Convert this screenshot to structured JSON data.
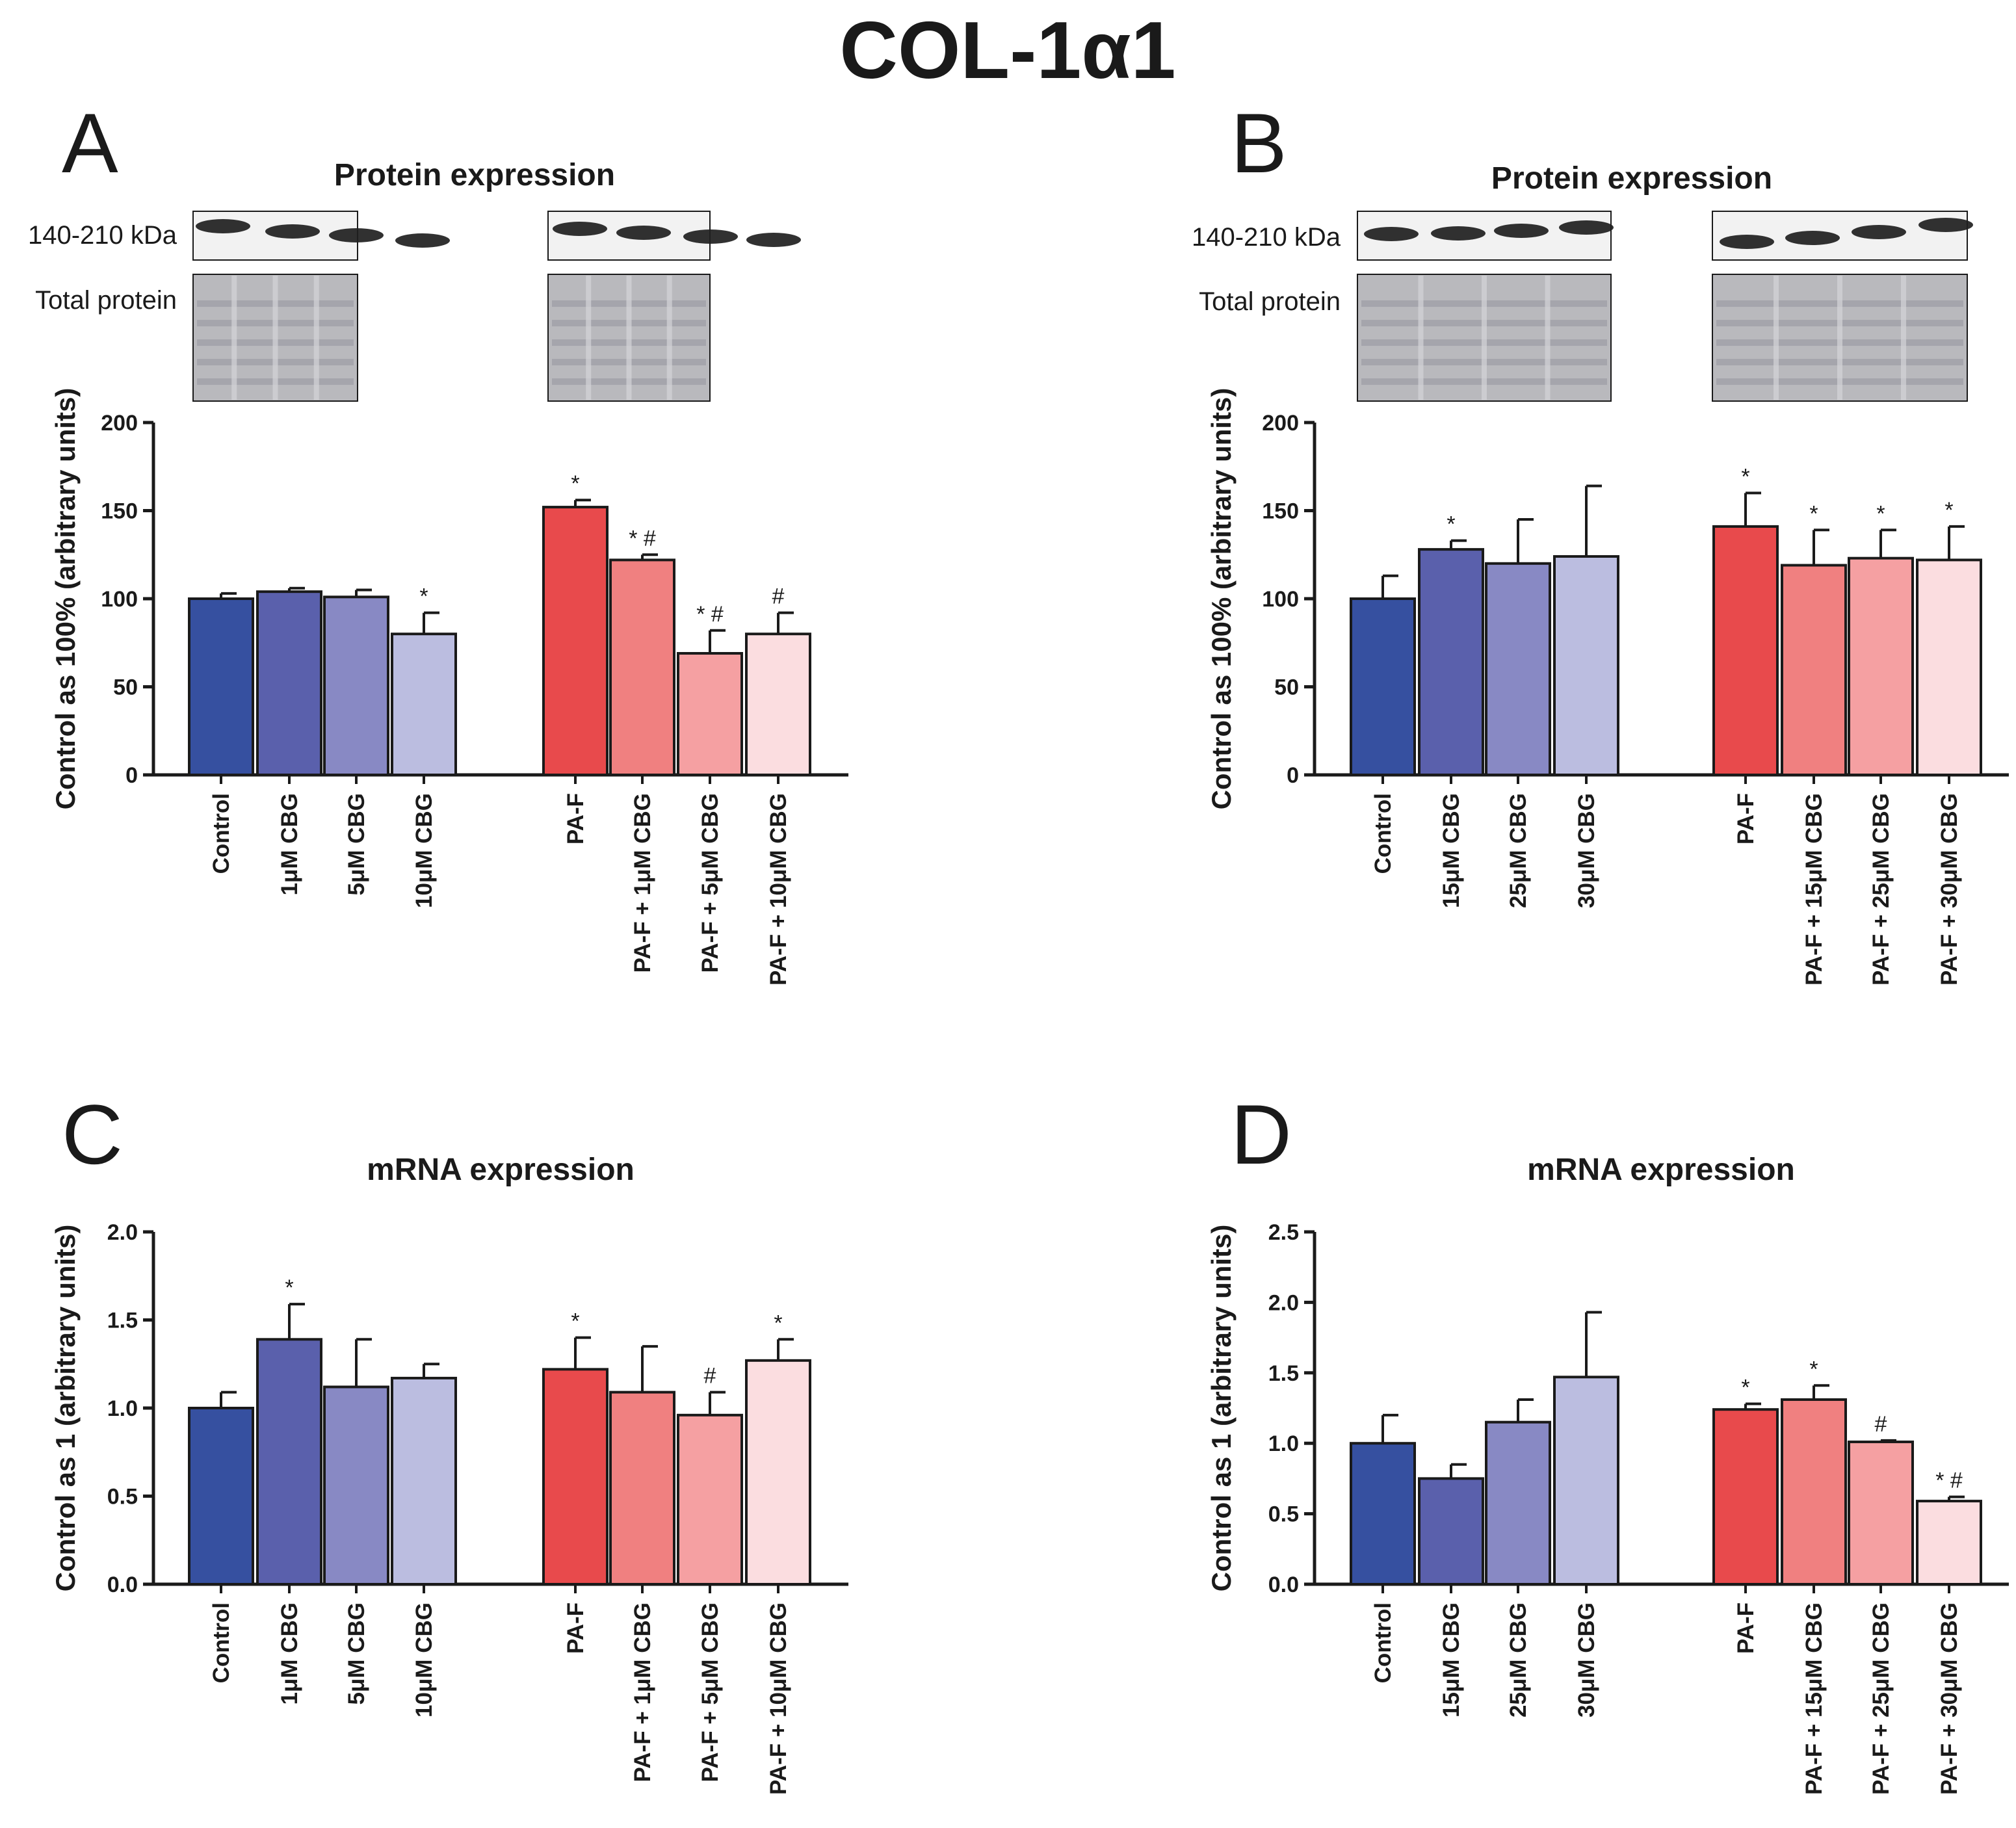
{
  "figure_title": "COL-1α1",
  "colors": {
    "blue": [
      "#3650a0",
      "#5a60ac",
      "#8889c4",
      "#bbbde0"
    ],
    "red": [
      "#e84a4c",
      "#f08080",
      "#f5a0a2",
      "#fbdde0"
    ],
    "axis": "#1a1a1a"
  },
  "blot_icons": [
    "western-blot-band-strip",
    "total-protein-stain-strip"
  ],
  "chart_data": [
    {
      "panel": "A",
      "type": "bar",
      "title": "Protein expression",
      "blot_labels": [
        "140-210 kDa",
        "Total protein"
      ],
      "ylabel": "Control as 100% (arbitrary units)",
      "ylim": [
        0,
        200
      ],
      "yticks": [
        "0",
        "50",
        "100",
        "150",
        "200"
      ],
      "groups": [
        {
          "categories": [
            "Control",
            "1μM CBG",
            "5μM CBG",
            "10μM CBG"
          ],
          "values": [
            100,
            104,
            101,
            80
          ],
          "errors": [
            3,
            2,
            4,
            12
          ],
          "sig": [
            "",
            "",
            "",
            "*"
          ]
        },
        {
          "categories": [
            "PA-F",
            "PA-F + 1μM CBG",
            "PA-F + 5μM CBG",
            "PA-F + 10μM CBG"
          ],
          "values": [
            152,
            122,
            69,
            80
          ],
          "errors": [
            4,
            3,
            13,
            12
          ],
          "sig": [
            "*",
            "* #",
            "* #",
            "#"
          ]
        }
      ]
    },
    {
      "panel": "B",
      "type": "bar",
      "title": "Protein expression",
      "blot_labels": [
        "140-210 kDa",
        "Total protein"
      ],
      "ylabel": "Control as 100% (arbitrary units)",
      "ylim": [
        0,
        200
      ],
      "yticks": [
        "0",
        "50",
        "100",
        "150",
        "200"
      ],
      "groups": [
        {
          "categories": [
            "Control",
            "15μM CBG",
            "25μM CBG",
            "30μM CBG"
          ],
          "values": [
            100,
            128,
            120,
            124
          ],
          "errors": [
            13,
            5,
            25,
            40
          ],
          "sig": [
            "",
            "*",
            "",
            ""
          ]
        },
        {
          "categories": [
            "PA-F",
            "PA-F + 15μM CBG",
            "PA-F + 25μM CBG",
            "PA-F + 30μM CBG"
          ],
          "values": [
            141,
            119,
            123,
            122
          ],
          "errors": [
            19,
            20,
            16,
            19
          ],
          "sig": [
            "*",
            "*",
            "*",
            "*"
          ]
        }
      ]
    },
    {
      "panel": "C",
      "type": "bar",
      "title": "mRNA expression",
      "ylabel": "Control as 1 (arbitrary units)",
      "ylim": [
        0,
        2.0
      ],
      "yticks": [
        "0.0",
        "0.5",
        "1.0",
        "1.5",
        "2.0"
      ],
      "groups": [
        {
          "categories": [
            "Control",
            "1μM CBG",
            "5μM CBG",
            "10μM CBG"
          ],
          "values": [
            1.0,
            1.39,
            1.12,
            1.17
          ],
          "errors": [
            0.09,
            0.2,
            0.27,
            0.08
          ],
          "sig": [
            "",
            "*",
            "",
            ""
          ]
        },
        {
          "categories": [
            "PA-F",
            "PA-F + 1μM CBG",
            "PA-F + 5μM CBG",
            "PA-F + 10μM CBG"
          ],
          "values": [
            1.22,
            1.09,
            0.96,
            1.27
          ],
          "errors": [
            0.18,
            0.26,
            0.13,
            0.12
          ],
          "sig": [
            "*",
            "",
            "#",
            "*"
          ]
        }
      ]
    },
    {
      "panel": "D",
      "type": "bar",
      "title": "mRNA expression",
      "ylabel": "Control as 1 (arbitrary units)",
      "ylim": [
        0,
        2.5
      ],
      "yticks": [
        "0.0",
        "0.5",
        "1.0",
        "1.5",
        "2.0",
        "2.5"
      ],
      "groups": [
        {
          "categories": [
            "Control",
            "15μM CBG",
            "25μM CBG",
            "30μM CBG"
          ],
          "values": [
            1.0,
            0.75,
            1.15,
            1.47
          ],
          "errors": [
            0.2,
            0.1,
            0.16,
            0.46
          ],
          "sig": [
            "",
            "",
            "",
            ""
          ]
        },
        {
          "categories": [
            "PA-F",
            "PA-F + 15μM CBG",
            "PA-F + 25μM CBG",
            "PA-F + 30μM CBG"
          ],
          "values": [
            1.24,
            1.31,
            1.01,
            0.59
          ],
          "errors": [
            0.04,
            0.1,
            0.01,
            0.03
          ],
          "sig": [
            "*",
            "*",
            "#",
            "* #"
          ]
        }
      ]
    }
  ]
}
